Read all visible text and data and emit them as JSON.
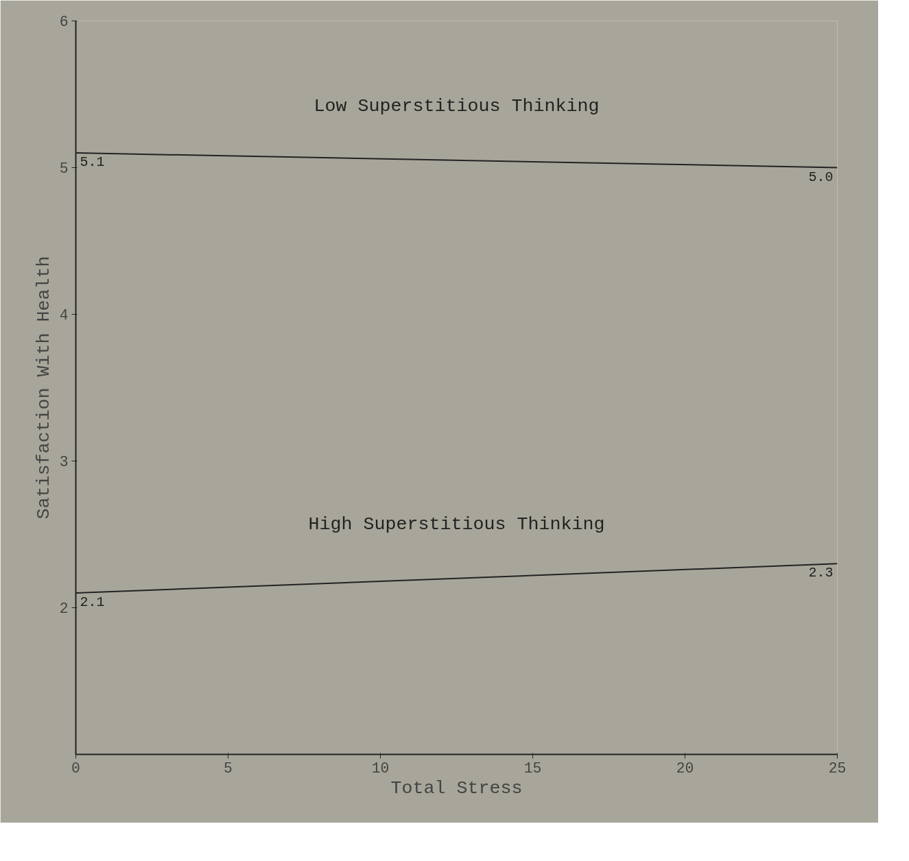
{
  "chart_data": {
    "type": "line",
    "xlabel": "Total Stress",
    "ylabel": "Satisfaction With Health",
    "x": [
      0,
      25
    ],
    "series": [
      {
        "name": "Low Superstitious Thinking",
        "color": "#222222",
        "values": [
          5.1,
          5.0
        ],
        "value_labels": [
          "5.1",
          "5.0"
        ]
      },
      {
        "name": "High Superstitious Thinking",
        "color": "#222222",
        "values": [
          2.1,
          2.3
        ],
        "value_labels": [
          "2.1",
          "2.3"
        ]
      }
    ],
    "xlim": [
      0,
      25
    ],
    "ylim": [
      1,
      6
    ],
    "xticks": [
      0,
      5,
      10,
      15,
      20,
      25
    ],
    "yticks": [
      2,
      3,
      4,
      5,
      6
    ],
    "grid": false,
    "legend": false,
    "marker": "none",
    "line_style": "solid"
  }
}
